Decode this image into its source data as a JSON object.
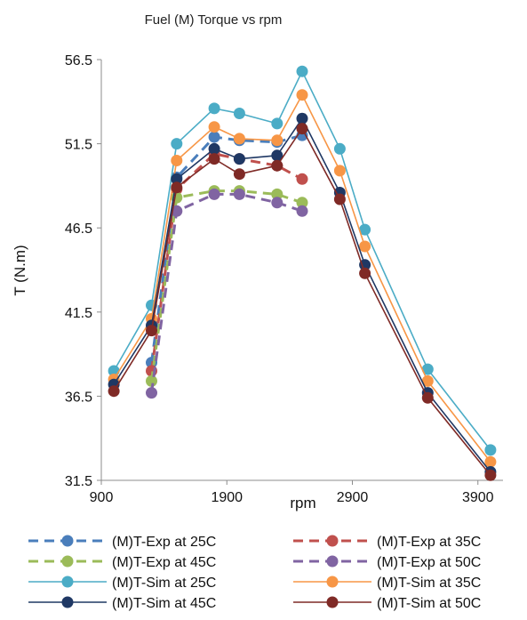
{
  "chart_data": {
    "type": "line",
    "title": "Fuel (M) Torque vs rpm",
    "xlabel": "rpm",
    "ylabel": "T (N.m)",
    "xlim": [
      900,
      4100
    ],
    "ylim": [
      31.5,
      56.5
    ],
    "xticks": [
      900,
      1900,
      2900,
      3900
    ],
    "yticks": [
      31.5,
      36.5,
      41.5,
      46.5,
      51.5,
      56.5
    ],
    "grid": false,
    "legend": "bottom",
    "series": [
      {
        "name": "(M)T-Exp at 25C",
        "style": "dashed",
        "color": "#4A7EBB",
        "x": [
          1300,
          1500,
          1800,
          2000,
          2300,
          2500
        ],
        "y": [
          38.5,
          49.5,
          51.9,
          51.7,
          51.6,
          52.0
        ]
      },
      {
        "name": "(M)T-Exp at 35C",
        "style": "dashed",
        "color": "#C0504D",
        "x": [
          1300,
          1500,
          1800,
          2000,
          2300,
          2500
        ],
        "y": [
          38.0,
          48.8,
          50.9,
          50.6,
          50.2,
          49.4
        ]
      },
      {
        "name": "(M)T-Exp at 45C",
        "style": "dashed",
        "color": "#9BBB59",
        "x": [
          1300,
          1500,
          1800,
          2000,
          2300,
          2500
        ],
        "y": [
          37.4,
          48.3,
          48.7,
          48.7,
          48.5,
          48.0
        ]
      },
      {
        "name": "(M)T-Exp at 50C",
        "style": "dashed",
        "color": "#8064A2",
        "x": [
          1300,
          1500,
          1800,
          2000,
          2300,
          2500
        ],
        "y": [
          36.7,
          47.5,
          48.5,
          48.5,
          48.0,
          47.5
        ]
      },
      {
        "name": "(M)T-Sim at 25C",
        "style": "solid",
        "color": "#4BACC6",
        "x": [
          1000,
          1300,
          1500,
          1800,
          2000,
          2300,
          2500,
          2800,
          3000,
          3500,
          4000
        ],
        "y": [
          38.0,
          41.9,
          51.5,
          53.6,
          53.3,
          52.7,
          55.8,
          51.2,
          46.4,
          38.1,
          33.3
        ]
      },
      {
        "name": "(M)T-Sim at 35C",
        "style": "solid",
        "color": "#F79646",
        "x": [
          1000,
          1300,
          1500,
          1800,
          2000,
          2300,
          2500,
          2800,
          3000,
          3500,
          4000
        ],
        "y": [
          37.5,
          41.1,
          50.5,
          52.5,
          51.8,
          51.7,
          54.4,
          49.9,
          45.4,
          37.4,
          32.6
        ]
      },
      {
        "name": "(M)T-Sim at 45C",
        "style": "solid",
        "color": "#1F3864",
        "x": [
          1000,
          1300,
          1500,
          1800,
          2000,
          2300,
          2500,
          2800,
          3000,
          3500,
          4000
        ],
        "y": [
          37.2,
          40.7,
          49.4,
          51.2,
          50.6,
          50.8,
          53.0,
          48.6,
          44.3,
          36.7,
          32.0
        ]
      },
      {
        "name": "(M)T-Sim at 50C",
        "style": "solid",
        "color": "#7F2A26",
        "x": [
          1000,
          1300,
          1500,
          1800,
          2000,
          2300,
          2500,
          2800,
          3000,
          3500,
          4000
        ],
        "y": [
          36.8,
          40.4,
          48.9,
          50.6,
          49.7,
          50.2,
          52.4,
          48.2,
          43.8,
          36.4,
          31.8
        ]
      }
    ]
  }
}
